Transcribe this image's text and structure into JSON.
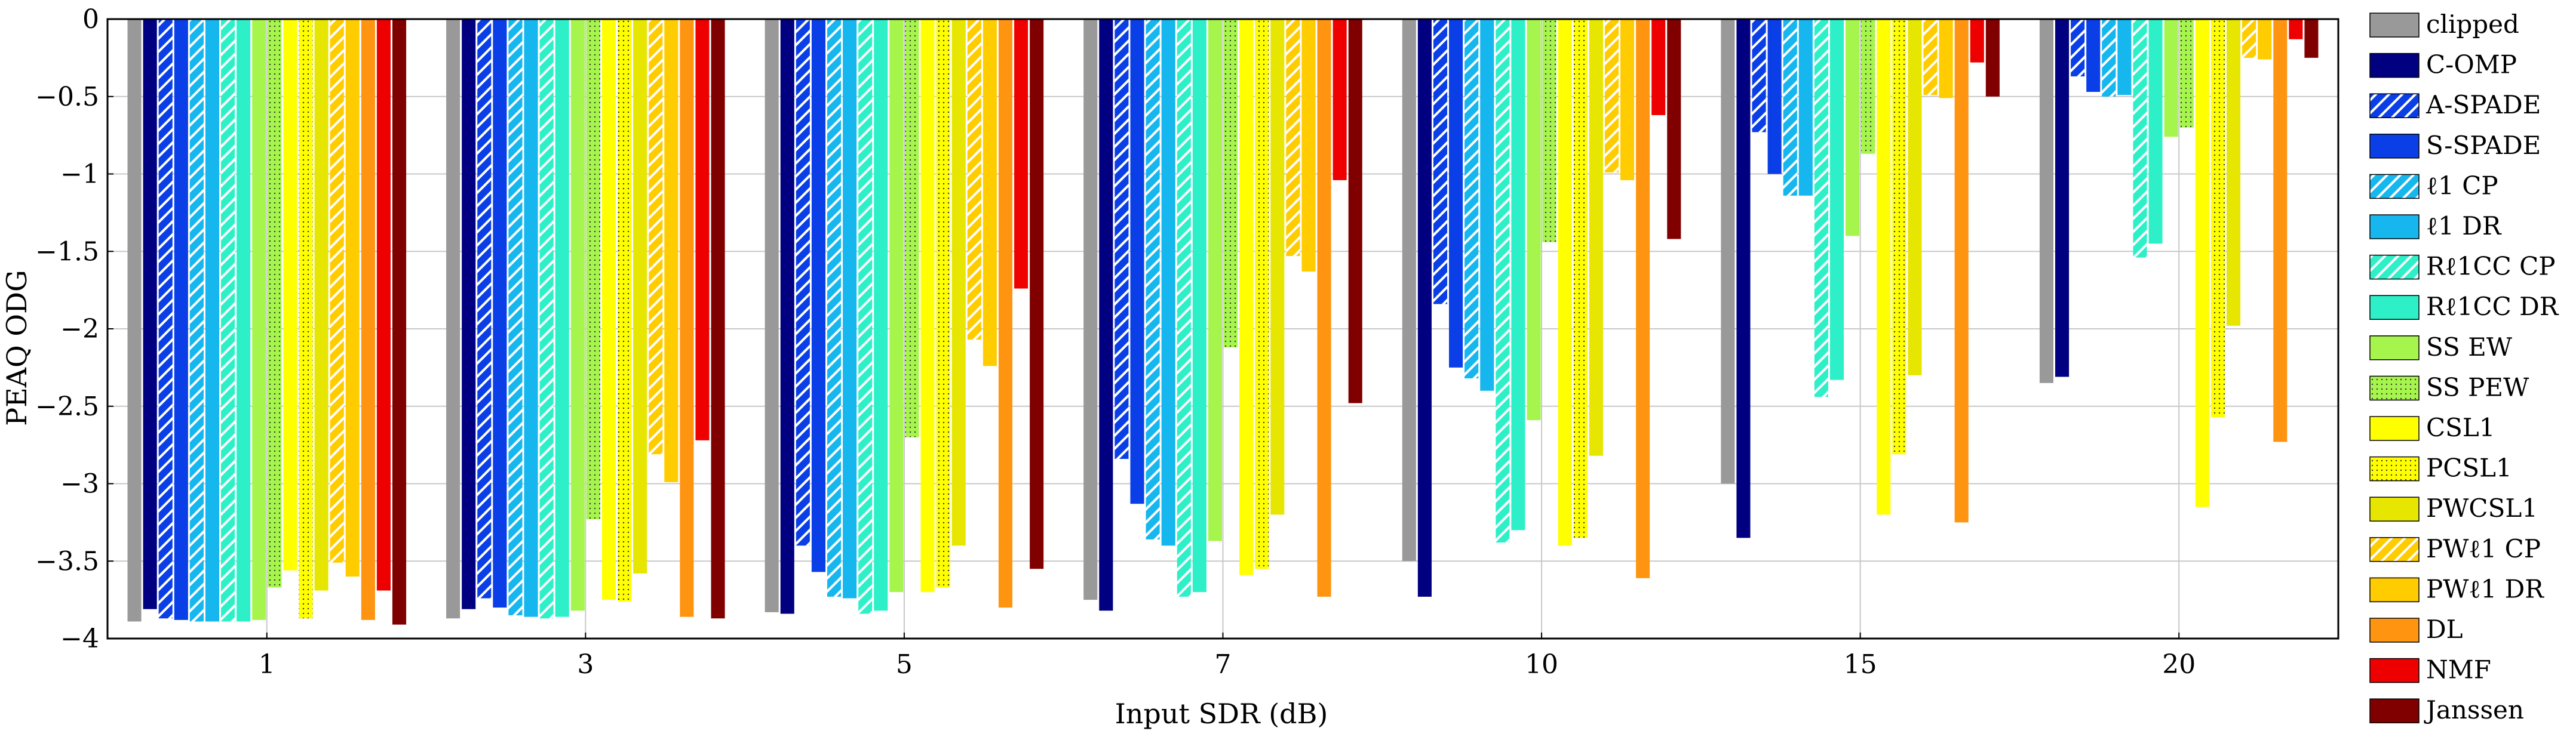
{
  "chart_data": {
    "type": "bar",
    "title": "",
    "xlabel": "Input SDR (dB)",
    "ylabel": "PEAQ ODG",
    "ylim": [
      -4,
      0
    ],
    "yticks": [
      "0",
      "−0.5",
      "−1",
      "−1.5",
      "−2",
      "−2.5",
      "−3",
      "−3.5",
      "−4"
    ],
    "ytick_values": [
      0,
      -0.5,
      -1,
      -1.5,
      -2,
      -2.5,
      -3,
      -3.5,
      -4
    ],
    "grid": true,
    "legend_position": "right",
    "categories": [
      "1",
      "3",
      "5",
      "7",
      "10",
      "15",
      "20"
    ],
    "series": [
      {
        "name": "clipped",
        "color": "#999999",
        "pattern": "none",
        "values": [
          -3.89,
          -3.87,
          -3.83,
          -3.75,
          -3.5,
          -3.0,
          -2.35
        ]
      },
      {
        "name": "C-OMP",
        "color": "#000080",
        "pattern": "none",
        "values": [
          -3.81,
          -3.81,
          -3.84,
          -3.82,
          -3.73,
          -3.35,
          -2.31
        ]
      },
      {
        "name": "A-SPADE",
        "color": "#0a3ee6",
        "pattern": "hatch",
        "values": [
          -3.87,
          -3.74,
          -3.4,
          -2.84,
          -1.84,
          -0.73,
          -0.37
        ]
      },
      {
        "name": "S-SPADE",
        "color": "#0a3ee6",
        "pattern": "none",
        "values": [
          -3.88,
          -3.8,
          -3.57,
          -3.13,
          -2.25,
          -1.0,
          -0.47
        ]
      },
      {
        "name": "ℓ1 CP",
        "color": "#16b6ee",
        "pattern": "hatch",
        "values": [
          -3.89,
          -3.85,
          -3.73,
          -3.36,
          -2.32,
          -1.14,
          -0.5
        ]
      },
      {
        "name": "ℓ1 DR",
        "color": "#16b6ee",
        "pattern": "none",
        "values": [
          -3.89,
          -3.86,
          -3.74,
          -3.4,
          -2.4,
          -1.14,
          -0.49
        ]
      },
      {
        "name": "Rℓ1CC CP",
        "color": "#2ef0c8",
        "pattern": "hatch",
        "values": [
          -3.89,
          -3.87,
          -3.84,
          -3.73,
          -3.38,
          -2.44,
          -1.54
        ]
      },
      {
        "name": "Rℓ1CC DR",
        "color": "#2ef0c8",
        "pattern": "none",
        "values": [
          -3.89,
          -3.86,
          -3.82,
          -3.7,
          -3.3,
          -2.33,
          -1.45
        ]
      },
      {
        "name": "SS EW",
        "color": "#a6f54c",
        "pattern": "none",
        "values": [
          -3.88,
          -3.82,
          -3.7,
          -3.37,
          -2.59,
          -1.4,
          -0.76
        ]
      },
      {
        "name": "SS PEW",
        "color": "#a6f54c",
        "pattern": "dots",
        "values": [
          -3.67,
          -3.23,
          -2.7,
          -2.12,
          -1.44,
          -0.87,
          -0.7
        ]
      },
      {
        "name": "CSL1",
        "color": "#ffff00",
        "pattern": "none",
        "values": [
          -3.56,
          -3.75,
          -3.7,
          -3.59,
          -3.4,
          -3.2,
          -3.15
        ]
      },
      {
        "name": "PCSL1",
        "color": "#ffff00",
        "pattern": "dots",
        "values": [
          -3.87,
          -3.76,
          -3.67,
          -3.55,
          -3.35,
          -2.81,
          -2.57
        ]
      },
      {
        "name": "PWCSL1",
        "color": "#e6e600",
        "pattern": "none",
        "values": [
          -3.69,
          -3.58,
          -3.4,
          -3.2,
          -2.82,
          -2.3,
          -1.98
        ]
      },
      {
        "name": "PWℓ1 CP",
        "color": "#ffcc00",
        "pattern": "hatch",
        "values": [
          -3.51,
          -2.81,
          -2.07,
          -1.53,
          -0.99,
          -0.49,
          -0.25
        ]
      },
      {
        "name": "PWℓ1 DR",
        "color": "#ffcc00",
        "pattern": "none",
        "values": [
          -3.6,
          -2.99,
          -2.24,
          -1.63,
          -1.04,
          -0.51,
          -0.26
        ]
      },
      {
        "name": "DL",
        "color": "#ff9411",
        "pattern": "none",
        "values": [
          -3.88,
          -3.86,
          -3.8,
          -3.73,
          -3.61,
          -3.25,
          -2.73
        ]
      },
      {
        "name": "NMF",
        "color": "#ee0000",
        "pattern": "none",
        "values": [
          -3.69,
          -2.72,
          -1.74,
          -1.04,
          -0.62,
          -0.28,
          -0.13
        ]
      },
      {
        "name": "Janssen",
        "color": "#800000",
        "pattern": "none",
        "values": [
          -3.91,
          -3.87,
          -3.55,
          -2.48,
          -1.42,
          -0.5,
          -0.25
        ]
      }
    ]
  }
}
